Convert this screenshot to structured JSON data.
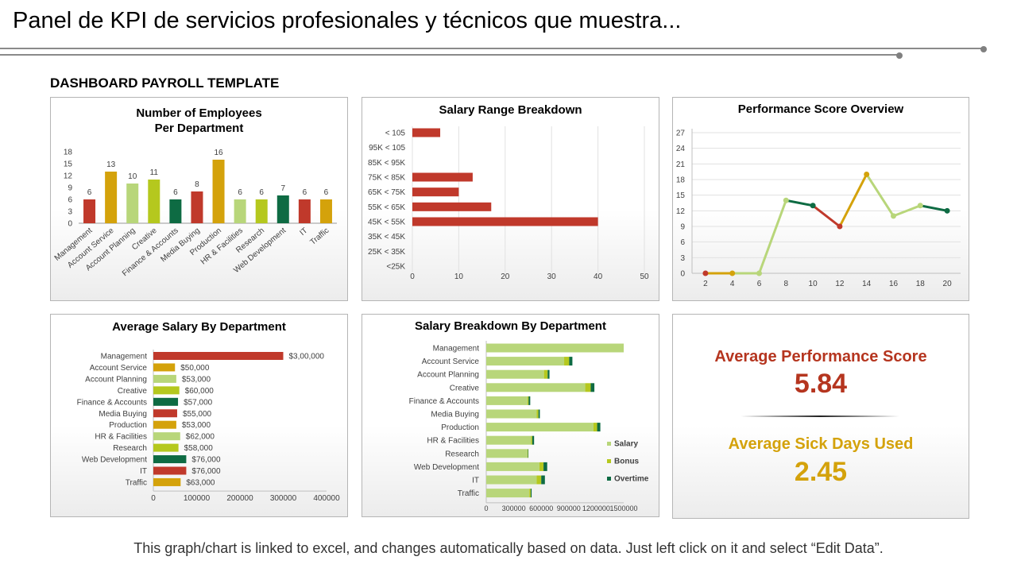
{
  "page": {
    "title": "Panel de KPI de servicios profesionales y técnicos que muestra...",
    "dashboard_title": "DASHBOARD PAYROLL TEMPLATE",
    "footer": "This graph/chart is linked to excel, and changes automatically based on data. Just left click on it and select “Edit Data”."
  },
  "colors": {
    "red": "#C0392B",
    "gold": "#D4A20B",
    "lightgreen": "#B8D67A",
    "lime": "#B5C81E",
    "darkgreen": "#0E6B43",
    "kpi_red": "#B5351F",
    "kpi_gold": "#D4A20B"
  },
  "kpis": {
    "performance_label": "Average Performance Score",
    "performance_value": "5.84",
    "sick_label": "Average Sick Days Used",
    "sick_value": "2.45"
  },
  "chart_data": [
    {
      "id": "employees",
      "type": "bar",
      "title": "Number of Employees Per Department",
      "categories": [
        "Management",
        "Account Service",
        "Account Planning",
        "Creative",
        "Finance & Accounts",
        "Media Buying",
        "Production",
        "HR & Facilities",
        "Research",
        "Web Development",
        "IT",
        "Traffic"
      ],
      "values": [
        6,
        13,
        10,
        11,
        6,
        8,
        16,
        6,
        6,
        7,
        6,
        6
      ],
      "colors": [
        "red",
        "gold",
        "lightgreen",
        "lime",
        "darkgreen",
        "red",
        "gold",
        "lightgreen",
        "lime",
        "darkgreen",
        "red",
        "gold"
      ],
      "y_ticks": [
        0,
        3,
        6,
        9,
        12,
        15,
        18
      ],
      "ylim": [
        0,
        18
      ],
      "data_labels": true,
      "grid": false
    },
    {
      "id": "salary_range",
      "type": "bar",
      "orientation": "horizontal",
      "title": "Salary Range Breakdown",
      "categories": [
        "< 105",
        "95K < 105",
        "85K < 95K",
        "75K < 85K",
        "65K < 75K",
        "55K < 65K",
        "45K < 55K",
        "35K < 45K",
        "25K < 35K",
        "<25K"
      ],
      "values": [
        6,
        0,
        0,
        13,
        10,
        17,
        40,
        0,
        0,
        0
      ],
      "x_ticks": [
        0,
        10,
        20,
        30,
        40,
        50
      ],
      "xlim": [
        0,
        50
      ],
      "color": "red",
      "grid": true
    },
    {
      "id": "performance",
      "type": "line",
      "title": "Performance Score Overview",
      "x": [
        2,
        4,
        6,
        8,
        10,
        12,
        14,
        16,
        18,
        20
      ],
      "y": [
        0,
        0,
        0,
        14,
        13,
        9,
        19,
        11,
        13,
        12
      ],
      "segment_colors": [
        "gold",
        "lightgreen",
        "lightgreen",
        "darkgreen",
        "red",
        "gold",
        "lightgreen",
        "lightgreen",
        "darkgreen"
      ],
      "point_colors": [
        "red",
        "gold",
        "lightgreen",
        "lightgreen",
        "darkgreen",
        "red",
        "gold",
        "lightgreen",
        "lightgreen",
        "darkgreen"
      ],
      "y_ticks": [
        0,
        3,
        6,
        9,
        12,
        15,
        18,
        21,
        24,
        27
      ],
      "ylim": [
        0,
        27
      ],
      "xlim": [
        1,
        21
      ],
      "grid": true
    },
    {
      "id": "avg_salary",
      "type": "bar",
      "orientation": "horizontal",
      "title": "Average Salary By Department",
      "categories": [
        "Management",
        "Account Service",
        "Account Planning",
        "Creative",
        "Finance & Accounts",
        "Media Buying",
        "Production",
        "HR & Facilities",
        "Research",
        "Web Development",
        "IT",
        "Traffic"
      ],
      "values": [
        300000,
        50000,
        53000,
        60000,
        57000,
        55000,
        53000,
        62000,
        58000,
        76000,
        76000,
        63000
      ],
      "value_labels": [
        "$3,00,000",
        "$50,000",
        "$53,000",
        "$60,000",
        "$57,000",
        "$55,000",
        "$53,000",
        "$62,000",
        "$58,000",
        "$76,000",
        "$76,000",
        "$63,000"
      ],
      "colors": [
        "red",
        "gold",
        "lightgreen",
        "lime",
        "darkgreen",
        "red",
        "gold",
        "lightgreen",
        "lime",
        "darkgreen",
        "red",
        "gold"
      ],
      "x_ticks": [
        0,
        100000,
        200000,
        300000,
        400000
      ],
      "xlim": [
        0,
        400000
      ],
      "grid": false
    },
    {
      "id": "salary_breakdown",
      "type": "bar",
      "orientation": "horizontal",
      "stacked": true,
      "title": "Salary Breakdown By Department",
      "categories": [
        "Management",
        "Account Service",
        "Account Planning",
        "Creative",
        "Finance & Accounts",
        "Media Buying",
        "Production",
        "HR & Facilities",
        "Research",
        "Web Development",
        "IT",
        "Traffic"
      ],
      "series": [
        {
          "name": "Salary",
          "color": "lightgreen",
          "values": [
            1500000,
            850000,
            630000,
            1080000,
            450000,
            550000,
            1170000,
            490000,
            450000,
            580000,
            550000,
            470000
          ]
        },
        {
          "name": "Bonus",
          "color": "lime",
          "values": [
            0,
            55000,
            40000,
            60000,
            12000,
            20000,
            40000,
            12000,
            5000,
            45000,
            50000,
            15000
          ]
        },
        {
          "name": "Overtime",
          "color": "darkgreen",
          "values": [
            0,
            35000,
            20000,
            40000,
            18000,
            15000,
            35000,
            20000,
            5000,
            40000,
            40000,
            10000
          ]
        }
      ],
      "x_ticks": [
        0,
        300000,
        600000,
        900000,
        1200000,
        1500000
      ],
      "xlim": [
        0,
        1500000
      ],
      "legend_position": "right",
      "grid": false
    }
  ]
}
